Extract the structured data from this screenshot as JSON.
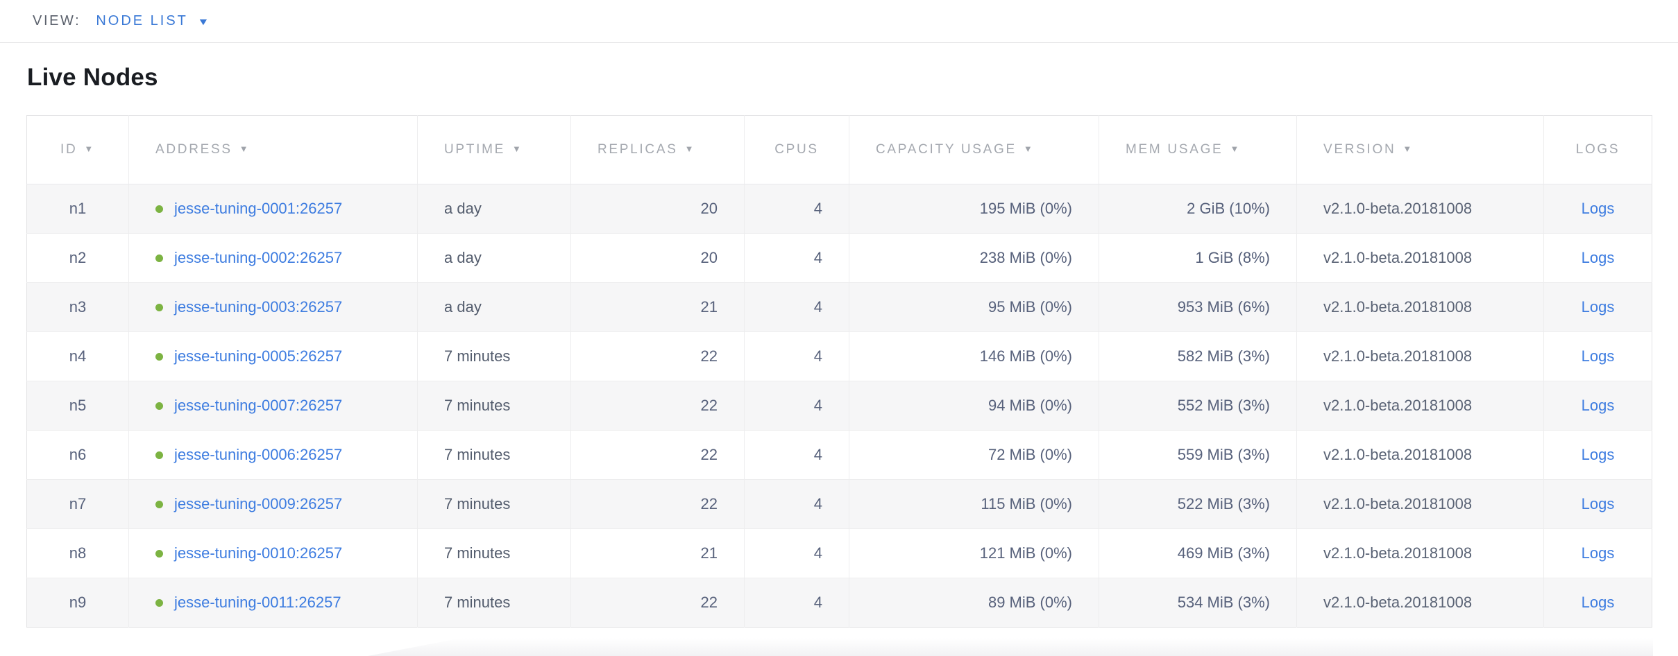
{
  "view_bar": {
    "label": "VIEW:",
    "selected": "NODE LIST",
    "dropdown_icon": "▼"
  },
  "page_title": "Live Nodes",
  "icons": {
    "sort_desc": "▼"
  },
  "colors": {
    "link_blue": "#3d7ce0",
    "selector_blue": "#3a79d6",
    "live_green": "#7cb342",
    "header_gray": "#a4a8af",
    "body_slate": "#57617b",
    "stripe_gray": "#f6f6f7"
  },
  "table": {
    "columns": [
      {
        "key": "id",
        "label": "ID",
        "sortable": true
      },
      {
        "key": "address",
        "label": "ADDRESS",
        "sortable": true
      },
      {
        "key": "uptime",
        "label": "UPTIME",
        "sortable": true
      },
      {
        "key": "replicas",
        "label": "REPLICAS",
        "sortable": true
      },
      {
        "key": "cpus",
        "label": "CPUS",
        "sortable": false
      },
      {
        "key": "capacity",
        "label": "CAPACITY USAGE",
        "sortable": true
      },
      {
        "key": "mem",
        "label": "MEM USAGE",
        "sortable": true
      },
      {
        "key": "version",
        "label": "VERSION",
        "sortable": true
      },
      {
        "key": "logs",
        "label": "LOGS",
        "sortable": false
      }
    ],
    "rows": [
      {
        "id": "n1",
        "address": "jesse-tuning-0001:26257",
        "status": "live",
        "uptime": "a day",
        "replicas": "20",
        "cpus": "4",
        "capacity": "195 MiB (0%)",
        "mem": "2 GiB (10%)",
        "version": "v2.1.0-beta.20181008",
        "logs": "Logs"
      },
      {
        "id": "n2",
        "address": "jesse-tuning-0002:26257",
        "status": "live",
        "uptime": "a day",
        "replicas": "20",
        "cpus": "4",
        "capacity": "238 MiB (0%)",
        "mem": "1 GiB (8%)",
        "version": "v2.1.0-beta.20181008",
        "logs": "Logs"
      },
      {
        "id": "n3",
        "address": "jesse-tuning-0003:26257",
        "status": "live",
        "uptime": "a day",
        "replicas": "21",
        "cpus": "4",
        "capacity": "95 MiB (0%)",
        "mem": "953 MiB (6%)",
        "version": "v2.1.0-beta.20181008",
        "logs": "Logs"
      },
      {
        "id": "n4",
        "address": "jesse-tuning-0005:26257",
        "status": "live",
        "uptime": "7 minutes",
        "replicas": "22",
        "cpus": "4",
        "capacity": "146 MiB (0%)",
        "mem": "582 MiB (3%)",
        "version": "v2.1.0-beta.20181008",
        "logs": "Logs"
      },
      {
        "id": "n5",
        "address": "jesse-tuning-0007:26257",
        "status": "live",
        "uptime": "7 minutes",
        "replicas": "22",
        "cpus": "4",
        "capacity": "94 MiB (0%)",
        "mem": "552 MiB (3%)",
        "version": "v2.1.0-beta.20181008",
        "logs": "Logs"
      },
      {
        "id": "n6",
        "address": "jesse-tuning-0006:26257",
        "status": "live",
        "uptime": "7 minutes",
        "replicas": "22",
        "cpus": "4",
        "capacity": "72 MiB (0%)",
        "mem": "559 MiB (3%)",
        "version": "v2.1.0-beta.20181008",
        "logs": "Logs"
      },
      {
        "id": "n7",
        "address": "jesse-tuning-0009:26257",
        "status": "live",
        "uptime": "7 minutes",
        "replicas": "22",
        "cpus": "4",
        "capacity": "115 MiB (0%)",
        "mem": "522 MiB (3%)",
        "version": "v2.1.0-beta.20181008",
        "logs": "Logs"
      },
      {
        "id": "n8",
        "address": "jesse-tuning-0010:26257",
        "status": "live",
        "uptime": "7 minutes",
        "replicas": "21",
        "cpus": "4",
        "capacity": "121 MiB (0%)",
        "mem": "469 MiB (3%)",
        "version": "v2.1.0-beta.20181008",
        "logs": "Logs"
      },
      {
        "id": "n9",
        "address": "jesse-tuning-0011:26257",
        "status": "live",
        "uptime": "7 minutes",
        "replicas": "22",
        "cpus": "4",
        "capacity": "89 MiB (0%)",
        "mem": "534 MiB (3%)",
        "version": "v2.1.0-beta.20181008",
        "logs": "Logs"
      }
    ]
  }
}
